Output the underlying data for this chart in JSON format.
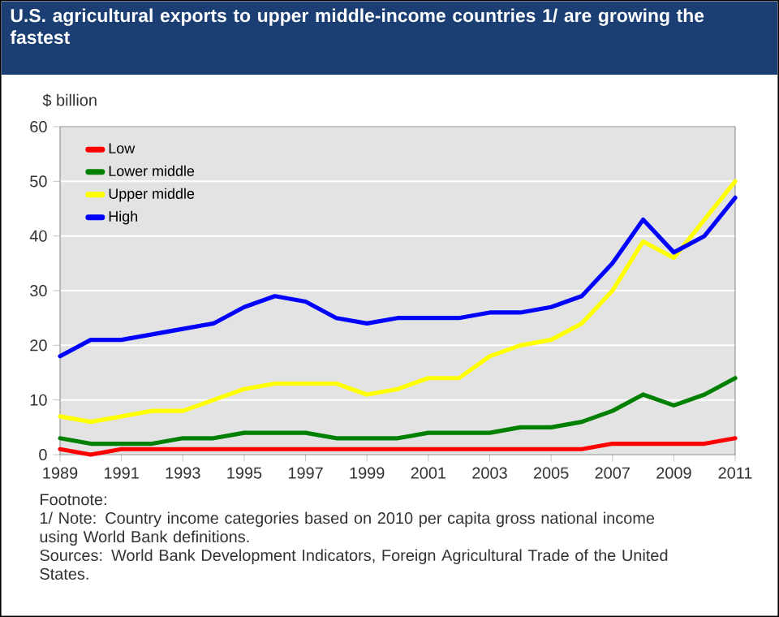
{
  "chart_data": {
    "type": "line",
    "title": "U.S. agricultural exports to upper middle-income countries 1/ are growing the fastest",
    "ylabel": "$ billion",
    "x": [
      1989,
      1990,
      1991,
      1992,
      1993,
      1994,
      1995,
      1996,
      1997,
      1998,
      1999,
      2000,
      2001,
      2002,
      2003,
      2004,
      2005,
      2006,
      2007,
      2008,
      2009,
      2010,
      2011
    ],
    "series": [
      {
        "name": "Low",
        "color": "#ff0000",
        "values": [
          1,
          0,
          1,
          1,
          1,
          1,
          1,
          1,
          1,
          1,
          1,
          1,
          1,
          1,
          1,
          1,
          1,
          1,
          2,
          2,
          2,
          2,
          3
        ]
      },
      {
        "name": "Lower middle",
        "color": "#008000",
        "values": [
          3,
          2,
          2,
          2,
          3,
          3,
          4,
          4,
          4,
          3,
          3,
          3,
          4,
          4,
          4,
          5,
          5,
          6,
          8,
          11,
          9,
          11,
          14
        ]
      },
      {
        "name": "Upper middle",
        "color": "#ffff00",
        "values": [
          7,
          6,
          7,
          8,
          8,
          10,
          12,
          13,
          13,
          13,
          11,
          12,
          14,
          14,
          18,
          20,
          21,
          24,
          30,
          39,
          36,
          43,
          50
        ]
      },
      {
        "name": "High",
        "color": "#0000ff",
        "values": [
          18,
          21,
          21,
          22,
          23,
          24,
          27,
          29,
          28,
          25,
          24,
          25,
          25,
          25,
          26,
          26,
          27,
          29,
          35,
          43,
          37,
          40,
          47
        ]
      }
    ],
    "xlim": [
      1989,
      2011
    ],
    "xticks": [
      1989,
      1991,
      1993,
      1995,
      1997,
      1999,
      2001,
      2003,
      2005,
      2007,
      2009,
      2011
    ],
    "ylim": [
      0,
      60
    ],
    "yticks": [
      0,
      10,
      20,
      30,
      40,
      50,
      60
    ],
    "grid": "y",
    "legend": "top left",
    "annotations": [
      "Footnote:",
      "1/ Note: Country income categories based on 2010 per capita gross national income using World Bank definitions.",
      "Sources: World Bank Development Indicators, Foreign Agricultural Trade of the United States."
    ]
  }
}
